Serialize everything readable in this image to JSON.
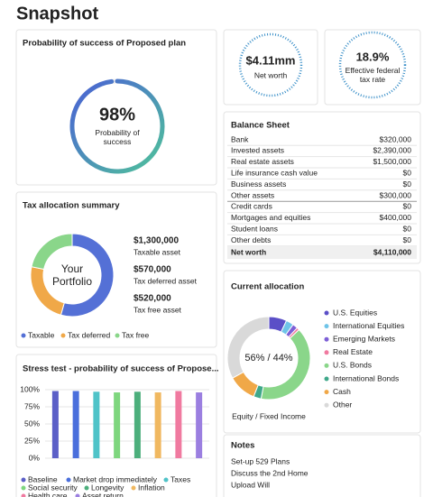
{
  "title": "Snapshot",
  "kpis": [
    {
      "value": "$4.11mm",
      "label": "Net worth"
    },
    {
      "value": "18.9%",
      "label": "Effective federal tax rate"
    }
  ],
  "balance_sheet": {
    "title": "Balance Sheet",
    "rows": [
      [
        "Bank",
        "$320,000"
      ],
      [
        "Invested assets",
        "$2,390,000"
      ],
      [
        "Real estate assets",
        "$1,500,000"
      ],
      [
        "Life insurance cash value",
        "$0"
      ],
      [
        "Business assets",
        "$0"
      ],
      [
        "Other assets",
        "$300,000"
      ],
      [
        "Credit cards",
        "$0"
      ],
      [
        "Mortgages and equities",
        "$400,000"
      ],
      [
        "Student loans",
        "$0"
      ],
      [
        "Other debts",
        "$0"
      ],
      [
        "Net worth",
        "$4,110,000"
      ]
    ]
  },
  "notes": {
    "title": "Notes",
    "items": [
      "Set-up 529 Plans",
      "Discuss the 2nd Home",
      "Upload Will"
    ]
  },
  "chart_data": [
    {
      "type": "gauge",
      "title": "Probability of success of Proposed plan",
      "values": [
        98
      ],
      "value_labels": [
        "98%"
      ],
      "label": "Probability of success",
      "color": "#4a6fdc"
    },
    {
      "type": "donut",
      "title": "Tax allocation summary",
      "center_label": "Your Portfolio",
      "categories": [
        "Taxable",
        "Tax deferred",
        "Tax free"
      ],
      "values": [
        1300000,
        570000,
        520000
      ],
      "value_labels": [
        "$1,300,000",
        "$570,000",
        "$520,000"
      ],
      "descriptions": [
        "Taxable asset",
        "Tax deferred asset",
        "Tax free asset"
      ],
      "colors": [
        "#5470d6",
        "#f0a848",
        "#8ad68a"
      ]
    },
    {
      "type": "bar",
      "title": "Stress test - probability of success of Propose...",
      "ylim": [
        0,
        100
      ],
      "grid": true,
      "yticks": [
        {
          "value": 0,
          "label": "0%"
        },
        {
          "value": 25,
          "label": "25%"
        },
        {
          "value": 50,
          "label": "50%"
        },
        {
          "value": 75,
          "label": "75%"
        },
        {
          "value": 100,
          "label": "100%"
        }
      ],
      "series": [
        {
          "name": "Baseline",
          "color": "#5b5fc7",
          "values": [
            98
          ]
        },
        {
          "name": "Market drop immediately",
          "color": "#4a6fdc",
          "values": [
            98
          ]
        },
        {
          "name": "Taxes",
          "color": "#4fc3c8",
          "values": [
            97
          ]
        },
        {
          "name": "Social security",
          "color": "#7ed67e",
          "values": [
            96
          ]
        },
        {
          "name": "Longevity",
          "color": "#4caf7c",
          "values": [
            97
          ]
        },
        {
          "name": "Inflation",
          "color": "#f0b860",
          "values": [
            96
          ]
        },
        {
          "name": "Health care",
          "color": "#f07aa0",
          "values": [
            98
          ]
        },
        {
          "name": "Asset return",
          "color": "#9b7fe0",
          "values": [
            96
          ]
        }
      ]
    },
    {
      "type": "donut",
      "title": "Current allocation",
      "center_label": "56% / 44%",
      "caption": "Equity / Fixed Income",
      "categories": [
        "U.S. Equities",
        "International Equities",
        "Emerging Markets",
        "Real Estate",
        "U.S. Bonds",
        "International Bonds",
        "Cash",
        "Other"
      ],
      "values": [
        7,
        3,
        2,
        1,
        40,
        3,
        11,
        33
      ],
      "colors": [
        "#5b4fc7",
        "#6fc4e8",
        "#7d5fd6",
        "#f07aa0",
        "#8ad68a",
        "#3fa88a",
        "#f0a848",
        "#d9d9d9"
      ]
    }
  ]
}
